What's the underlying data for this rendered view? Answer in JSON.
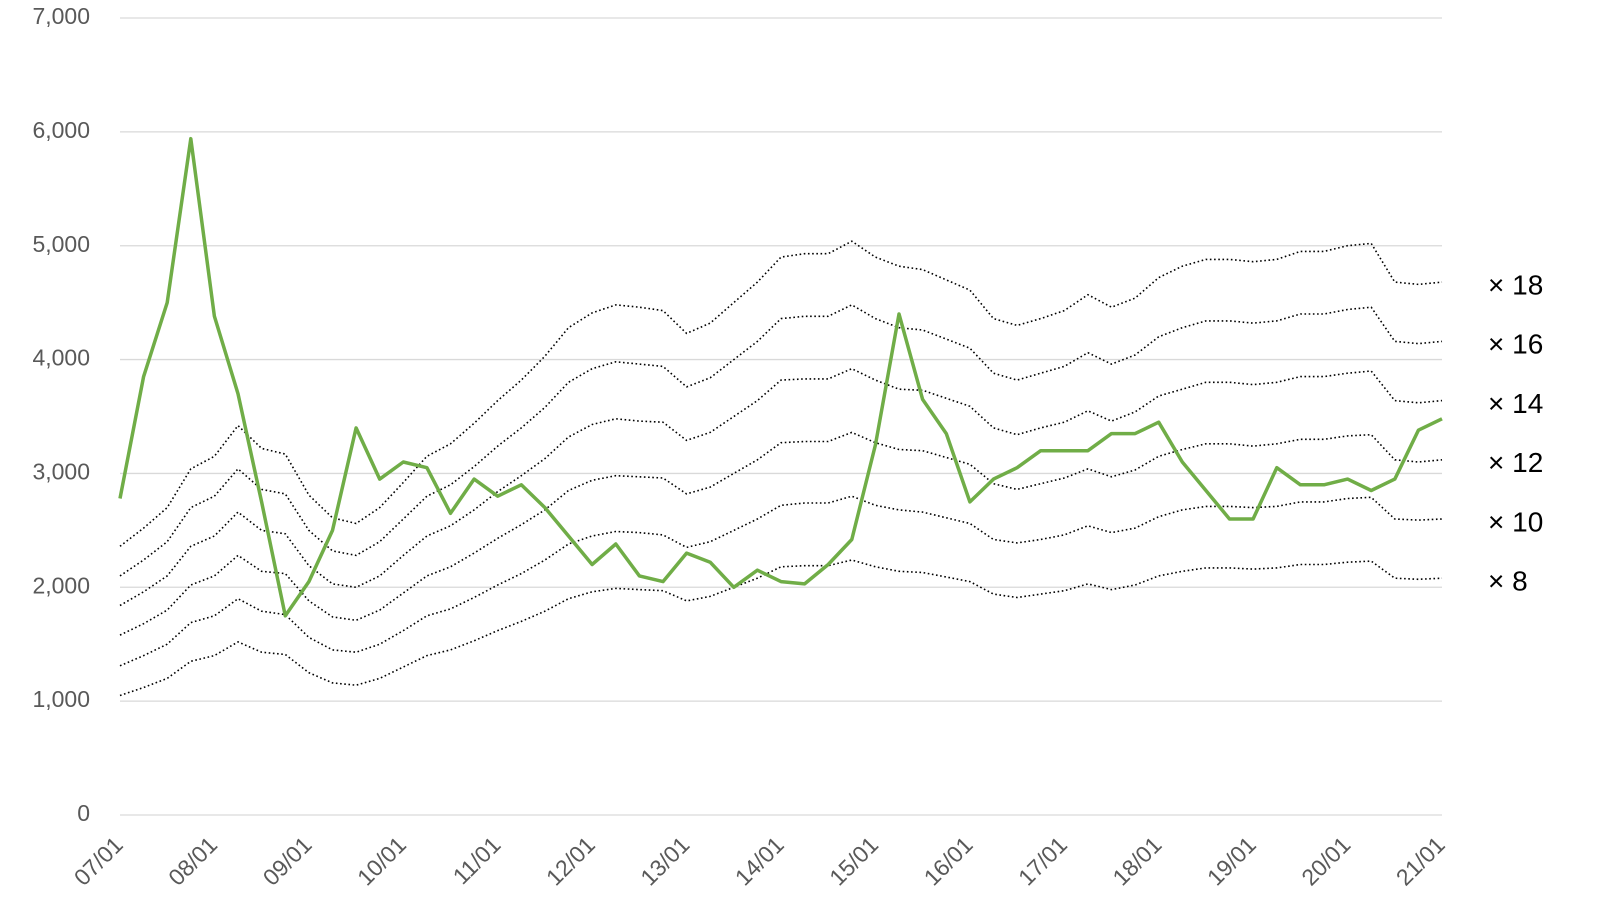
{
  "chart_data": {
    "type": "line",
    "categories": [
      "07/01",
      null,
      null,
      null,
      "08/01",
      null,
      null,
      null,
      "09/01",
      null,
      null,
      null,
      "10/01",
      null,
      null,
      null,
      "11/01",
      null,
      null,
      null,
      "12/01",
      null,
      null,
      null,
      "13/01",
      null,
      null,
      null,
      "14/01",
      null,
      null,
      null,
      "15/01",
      null,
      null,
      null,
      "16/01",
      null,
      null,
      null,
      "17/01",
      null,
      null,
      null,
      "18/01",
      null,
      null,
      null,
      "19/01",
      null,
      null,
      null,
      "20/01",
      null,
      null,
      null,
      "21/01"
    ],
    "series": [
      {
        "color": "#70ad47",
        "style": "solid",
        "values": [
          2780,
          3850,
          4500,
          5940,
          4380,
          3700,
          2750,
          1750,
          2050,
          2500,
          3400,
          2950,
          3100,
          3050,
          2650,
          2950,
          2800,
          2900,
          2700,
          2450,
          2200,
          2380,
          2100,
          2050,
          2300,
          2220,
          2000,
          2150,
          2050,
          2030,
          2200,
          2420,
          3250,
          4400,
          3650,
          3350,
          2750,
          2950,
          3050,
          3200,
          3200,
          3200,
          3350,
          3350,
          3450,
          3100,
          2850,
          2600,
          2600,
          3050,
          2900,
          2900,
          2950,
          2850,
          2950,
          3380,
          3480
        ]
      },
      {
        "name": "× 18",
        "color": "#000000",
        "style": "dotted",
        "values": [
          2360,
          2520,
          2700,
          3040,
          3150,
          3420,
          3220,
          3170,
          2810,
          2610,
          2560,
          2700,
          2920,
          3150,
          3260,
          3440,
          3640,
          3820,
          4030,
          4280,
          4410,
          4480,
          4460,
          4430,
          4230,
          4320,
          4500,
          4680,
          4900,
          4930,
          4930,
          5040,
          4900,
          4820,
          4790,
          4700,
          4610,
          4360,
          4300,
          4360,
          4430,
          4570,
          4460,
          4540,
          4720,
          4820,
          4880,
          4880,
          4860,
          4880,
          4950,
          4950,
          5000,
          5020,
          4680,
          4660,
          4680
        ]
      },
      {
        "name": "× 16",
        "color": "#000000",
        "style": "dotted",
        "values": [
          2100,
          2240,
          2400,
          2700,
          2800,
          3040,
          2860,
          2820,
          2500,
          2320,
          2280,
          2400,
          2600,
          2800,
          2900,
          3060,
          3240,
          3400,
          3580,
          3800,
          3920,
          3980,
          3960,
          3940,
          3760,
          3840,
          4000,
          4160,
          4360,
          4380,
          4380,
          4480,
          4360,
          4280,
          4260,
          4180,
          4100,
          3880,
          3820,
          3880,
          3940,
          4060,
          3960,
          4040,
          4200,
          4280,
          4340,
          4340,
          4320,
          4340,
          4400,
          4400,
          4440,
          4460,
          4160,
          4140,
          4160
        ]
      },
      {
        "name": "× 14",
        "color": "#000000",
        "style": "dotted",
        "values": [
          1840,
          1960,
          2100,
          2360,
          2450,
          2660,
          2500,
          2470,
          2190,
          2030,
          2000,
          2100,
          2280,
          2450,
          2540,
          2680,
          2840,
          2980,
          3130,
          3320,
          3430,
          3480,
          3460,
          3450,
          3290,
          3360,
          3500,
          3640,
          3820,
          3830,
          3830,
          3920,
          3820,
          3740,
          3730,
          3660,
          3590,
          3400,
          3340,
          3400,
          3450,
          3550,
          3460,
          3540,
          3680,
          3740,
          3800,
          3800,
          3780,
          3800,
          3850,
          3850,
          3880,
          3900,
          3640,
          3620,
          3640
        ]
      },
      {
        "name": "× 12",
        "color": "#000000",
        "style": "dotted",
        "values": [
          1580,
          1680,
          1800,
          2020,
          2100,
          2280,
          2140,
          2120,
          1880,
          1740,
          1710,
          1800,
          1950,
          2100,
          2180,
          2300,
          2430,
          2550,
          2680,
          2850,
          2940,
          2980,
          2970,
          2960,
          2820,
          2880,
          3000,
          3120,
          3270,
          3280,
          3280,
          3360,
          3270,
          3210,
          3200,
          3140,
          3080,
          2910,
          2860,
          2910,
          2960,
          3040,
          2970,
          3030,
          3150,
          3210,
          3260,
          3260,
          3240,
          3260,
          3300,
          3300,
          3330,
          3340,
          3120,
          3100,
          3120
        ]
      },
      {
        "name": "× 10",
        "color": "#000000",
        "style": "dotted",
        "values": [
          1310,
          1400,
          1500,
          1690,
          1750,
          1900,
          1790,
          1760,
          1560,
          1450,
          1430,
          1500,
          1620,
          1750,
          1810,
          1910,
          2020,
          2120,
          2240,
          2380,
          2450,
          2490,
          2480,
          2460,
          2350,
          2400,
          2500,
          2600,
          2720,
          2740,
          2740,
          2800,
          2720,
          2680,
          2660,
          2610,
          2560,
          2420,
          2390,
          2420,
          2460,
          2540,
          2480,
          2520,
          2620,
          2680,
          2710,
          2710,
          2700,
          2710,
          2750,
          2750,
          2780,
          2790,
          2600,
          2590,
          2600
        ]
      },
      {
        "name": "× 8",
        "color": "#000000",
        "style": "dotted",
        "values": [
          1050,
          1120,
          1200,
          1350,
          1400,
          1520,
          1430,
          1410,
          1250,
          1160,
          1140,
          1200,
          1300,
          1400,
          1450,
          1530,
          1620,
          1700,
          1790,
          1900,
          1960,
          1990,
          1980,
          1970,
          1880,
          1920,
          2000,
          2080,
          2180,
          2190,
          2190,
          2240,
          2180,
          2140,
          2130,
          2090,
          2050,
          1940,
          1910,
          1940,
          1970,
          2030,
          1980,
          2020,
          2100,
          2140,
          2170,
          2170,
          2160,
          2170,
          2200,
          2200,
          2220,
          2230,
          2080,
          2070,
          2080
        ]
      }
    ],
    "ylim": [
      0,
      7000
    ],
    "yticks": [
      0,
      {
        "value": 1000,
        "label": "1,000"
      },
      {
        "value": 2000,
        "label": "2,000"
      },
      {
        "value": 3000,
        "label": "3,000"
      },
      {
        "value": 4000,
        "label": "4,000"
      },
      {
        "value": 5000,
        "label": "5,000"
      },
      {
        "value": 6000,
        "label": "6,000"
      },
      {
        "value": 7000,
        "label": "7,000"
      }
    ],
    "grid": true
  }
}
